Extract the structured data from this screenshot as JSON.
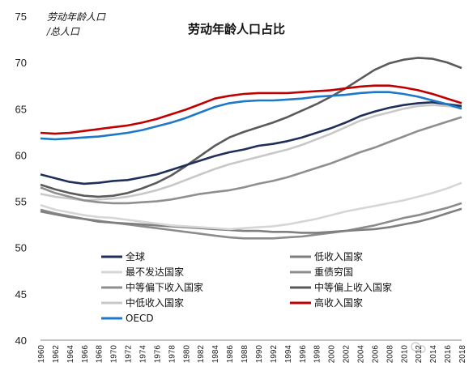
{
  "chart_data": {
    "type": "line",
    "title": "劳动年龄人口占比",
    "ylabel_line1": "劳动年龄人口",
    "ylabel_line2": "/总人口",
    "ylim": [
      40,
      75
    ],
    "yticks": [
      40,
      45,
      50,
      55,
      60,
      65,
      70,
      75
    ],
    "xticks": [
      "1960",
      "1962",
      "1964",
      "1966",
      "1968",
      "1970",
      "1972",
      "1974",
      "1976",
      "1978",
      "1980",
      "1982",
      "1984",
      "1986",
      "1988",
      "1990",
      "1992",
      "1994",
      "1996",
      "1998",
      "2000",
      "2002",
      "2004",
      "2006",
      "2008",
      "2010",
      "2012",
      "2014",
      "2016",
      "2018"
    ],
    "legend_placement": "bottom-center",
    "grid": false,
    "series": [
      {
        "name": "全球",
        "color": "#1f2f5a",
        "points": [
          [
            1960,
            57.9
          ],
          [
            1962,
            57.5
          ],
          [
            1964,
            57.1
          ],
          [
            1966,
            56.9
          ],
          [
            1968,
            57.0
          ],
          [
            1970,
            57.2
          ],
          [
            1972,
            57.3
          ],
          [
            1974,
            57.6
          ],
          [
            1976,
            57.9
          ],
          [
            1978,
            58.4
          ],
          [
            1980,
            58.9
          ],
          [
            1982,
            59.4
          ],
          [
            1984,
            59.9
          ],
          [
            1986,
            60.3
          ],
          [
            1988,
            60.6
          ],
          [
            1990,
            61.0
          ],
          [
            1992,
            61.2
          ],
          [
            1994,
            61.5
          ],
          [
            1996,
            61.9
          ],
          [
            1998,
            62.4
          ],
          [
            2000,
            62.9
          ],
          [
            2002,
            63.5
          ],
          [
            2004,
            64.2
          ],
          [
            2006,
            64.7
          ],
          [
            2008,
            65.1
          ],
          [
            2010,
            65.4
          ],
          [
            2012,
            65.6
          ],
          [
            2014,
            65.7
          ],
          [
            2016,
            65.5
          ],
          [
            2018,
            65.3
          ]
        ]
      },
      {
        "name": "低收入国家",
        "color": "#7f7f7f",
        "points": [
          [
            1960,
            53.9
          ],
          [
            1962,
            53.6
          ],
          [
            1964,
            53.3
          ],
          [
            1966,
            53.1
          ],
          [
            1968,
            52.8
          ],
          [
            1970,
            52.7
          ],
          [
            1972,
            52.6
          ],
          [
            1974,
            52.5
          ],
          [
            1976,
            52.4
          ],
          [
            1978,
            52.3
          ],
          [
            1980,
            52.2
          ],
          [
            1982,
            52.1
          ],
          [
            1984,
            52.0
          ],
          [
            1986,
            51.9
          ],
          [
            1988,
            51.8
          ],
          [
            1990,
            51.8
          ],
          [
            1992,
            51.7
          ],
          [
            1994,
            51.7
          ],
          [
            1996,
            51.6
          ],
          [
            1998,
            51.6
          ],
          [
            2000,
            51.7
          ],
          [
            2002,
            51.8
          ],
          [
            2004,
            51.9
          ],
          [
            2006,
            52.0
          ],
          [
            2008,
            52.2
          ],
          [
            2010,
            52.5
          ],
          [
            2012,
            52.8
          ],
          [
            2014,
            53.2
          ],
          [
            2016,
            53.7
          ],
          [
            2018,
            54.2
          ]
        ]
      },
      {
        "name": "最不发达国家",
        "color": "#d6d6d6",
        "points": [
          [
            1960,
            54.6
          ],
          [
            1962,
            54.1
          ],
          [
            1964,
            53.8
          ],
          [
            1966,
            53.5
          ],
          [
            1968,
            53.3
          ],
          [
            1970,
            53.2
          ],
          [
            1972,
            53.0
          ],
          [
            1974,
            52.8
          ],
          [
            1976,
            52.6
          ],
          [
            1978,
            52.4
          ],
          [
            1980,
            52.3
          ],
          [
            1982,
            52.2
          ],
          [
            1984,
            52.1
          ],
          [
            1986,
            52.0
          ],
          [
            1988,
            52.1
          ],
          [
            1990,
            52.2
          ],
          [
            1992,
            52.3
          ],
          [
            1994,
            52.5
          ],
          [
            1996,
            52.8
          ],
          [
            1998,
            53.1
          ],
          [
            2000,
            53.5
          ],
          [
            2002,
            53.9
          ],
          [
            2004,
            54.2
          ],
          [
            2006,
            54.5
          ],
          [
            2008,
            54.8
          ],
          [
            2010,
            55.1
          ],
          [
            2012,
            55.5
          ],
          [
            2014,
            55.9
          ],
          [
            2016,
            56.4
          ],
          [
            2018,
            57.0
          ]
        ]
      },
      {
        "name": "重债穷国",
        "color": "#8c8c8c",
        "points": [
          [
            1960,
            54.1
          ],
          [
            1962,
            53.7
          ],
          [
            1964,
            53.4
          ],
          [
            1966,
            53.1
          ],
          [
            1968,
            52.9
          ],
          [
            1970,
            52.7
          ],
          [
            1972,
            52.5
          ],
          [
            1974,
            52.3
          ],
          [
            1976,
            52.1
          ],
          [
            1978,
            51.9
          ],
          [
            1980,
            51.7
          ],
          [
            1982,
            51.5
          ],
          [
            1984,
            51.3
          ],
          [
            1986,
            51.1
          ],
          [
            1988,
            51.0
          ],
          [
            1990,
            51.0
          ],
          [
            1992,
            51.0
          ],
          [
            1994,
            51.1
          ],
          [
            1996,
            51.2
          ],
          [
            1998,
            51.4
          ],
          [
            2000,
            51.6
          ],
          [
            2002,
            51.8
          ],
          [
            2004,
            52.1
          ],
          [
            2006,
            52.4
          ],
          [
            2008,
            52.8
          ],
          [
            2010,
            53.2
          ],
          [
            2012,
            53.5
          ],
          [
            2014,
            53.9
          ],
          [
            2016,
            54.3
          ],
          [
            2018,
            54.8
          ]
        ]
      },
      {
        "name": "中等偏下收入国家",
        "color": "#8f8f8f",
        "points": [
          [
            1960,
            56.5
          ],
          [
            1962,
            55.9
          ],
          [
            1964,
            55.5
          ],
          [
            1966,
            55.1
          ],
          [
            1968,
            54.9
          ],
          [
            1970,
            54.8
          ],
          [
            1972,
            54.8
          ],
          [
            1974,
            54.9
          ],
          [
            1976,
            55.0
          ],
          [
            1978,
            55.2
          ],
          [
            1980,
            55.5
          ],
          [
            1982,
            55.8
          ],
          [
            1984,
            56.0
          ],
          [
            1986,
            56.2
          ],
          [
            1988,
            56.5
          ],
          [
            1990,
            56.9
          ],
          [
            1992,
            57.2
          ],
          [
            1994,
            57.6
          ],
          [
            1996,
            58.1
          ],
          [
            1998,
            58.6
          ],
          [
            2000,
            59.1
          ],
          [
            2002,
            59.7
          ],
          [
            2004,
            60.3
          ],
          [
            2006,
            60.8
          ],
          [
            2008,
            61.4
          ],
          [
            2010,
            62.0
          ],
          [
            2012,
            62.6
          ],
          [
            2014,
            63.1
          ],
          [
            2016,
            63.6
          ],
          [
            2018,
            64.1
          ]
        ]
      },
      {
        "name": "中等偏上收入国家",
        "color": "#5a5a5a",
        "points": [
          [
            1960,
            56.8
          ],
          [
            1962,
            56.3
          ],
          [
            1964,
            55.9
          ],
          [
            1966,
            55.6
          ],
          [
            1968,
            55.5
          ],
          [
            1970,
            55.6
          ],
          [
            1972,
            55.9
          ],
          [
            1974,
            56.4
          ],
          [
            1976,
            57.0
          ],
          [
            1978,
            57.8
          ],
          [
            1980,
            58.8
          ],
          [
            1982,
            59.9
          ],
          [
            1984,
            61.0
          ],
          [
            1986,
            61.9
          ],
          [
            1988,
            62.5
          ],
          [
            1990,
            63.0
          ],
          [
            1992,
            63.5
          ],
          [
            1994,
            64.1
          ],
          [
            1996,
            64.8
          ],
          [
            1998,
            65.5
          ],
          [
            2000,
            66.3
          ],
          [
            2002,
            67.2
          ],
          [
            2004,
            68.2
          ],
          [
            2006,
            69.2
          ],
          [
            2008,
            69.9
          ],
          [
            2010,
            70.3
          ],
          [
            2012,
            70.5
          ],
          [
            2014,
            70.4
          ],
          [
            2016,
            70.0
          ],
          [
            2018,
            69.4
          ]
        ]
      },
      {
        "name": "中低收入国家",
        "color": "#c8c8c8",
        "points": [
          [
            1960,
            55.8
          ],
          [
            1962,
            55.5
          ],
          [
            1964,
            55.3
          ],
          [
            1966,
            55.1
          ],
          [
            1968,
            55.2
          ],
          [
            1970,
            55.3
          ],
          [
            1972,
            55.5
          ],
          [
            1974,
            55.8
          ],
          [
            1976,
            56.2
          ],
          [
            1978,
            56.7
          ],
          [
            1980,
            57.3
          ],
          [
            1982,
            57.9
          ],
          [
            1984,
            58.5
          ],
          [
            1986,
            59.0
          ],
          [
            1988,
            59.4
          ],
          [
            1990,
            59.8
          ],
          [
            1992,
            60.2
          ],
          [
            1994,
            60.6
          ],
          [
            1996,
            61.1
          ],
          [
            1998,
            61.7
          ],
          [
            2000,
            62.3
          ],
          [
            2002,
            63.0
          ],
          [
            2004,
            63.7
          ],
          [
            2006,
            64.2
          ],
          [
            2008,
            64.6
          ],
          [
            2010,
            65.0
          ],
          [
            2012,
            65.3
          ],
          [
            2014,
            65.4
          ],
          [
            2016,
            65.3
          ],
          [
            2018,
            65.1
          ]
        ]
      },
      {
        "name": "高收入国家",
        "color": "#c00000",
        "points": [
          [
            1960,
            62.4
          ],
          [
            1962,
            62.3
          ],
          [
            1964,
            62.4
          ],
          [
            1966,
            62.6
          ],
          [
            1968,
            62.8
          ],
          [
            1970,
            63.0
          ],
          [
            1972,
            63.2
          ],
          [
            1974,
            63.5
          ],
          [
            1976,
            63.9
          ],
          [
            1978,
            64.4
          ],
          [
            1980,
            64.9
          ],
          [
            1982,
            65.5
          ],
          [
            1984,
            66.1
          ],
          [
            1986,
            66.4
          ],
          [
            1988,
            66.6
          ],
          [
            1990,
            66.7
          ],
          [
            1992,
            66.7
          ],
          [
            1994,
            66.7
          ],
          [
            1996,
            66.8
          ],
          [
            1998,
            66.9
          ],
          [
            2000,
            67.0
          ],
          [
            2002,
            67.2
          ],
          [
            2004,
            67.4
          ],
          [
            2006,
            67.5
          ],
          [
            2008,
            67.5
          ],
          [
            2010,
            67.3
          ],
          [
            2012,
            67.0
          ],
          [
            2014,
            66.6
          ],
          [
            2016,
            66.1
          ],
          [
            2018,
            65.6
          ]
        ]
      },
      {
        "name": "OECD",
        "color": "#1e78c8",
        "points": [
          [
            1960,
            61.8
          ],
          [
            1962,
            61.7
          ],
          [
            1964,
            61.8
          ],
          [
            1966,
            61.9
          ],
          [
            1968,
            62.0
          ],
          [
            1970,
            62.2
          ],
          [
            1972,
            62.4
          ],
          [
            1974,
            62.7
          ],
          [
            1976,
            63.1
          ],
          [
            1978,
            63.5
          ],
          [
            1980,
            64.0
          ],
          [
            1982,
            64.6
          ],
          [
            1984,
            65.2
          ],
          [
            1986,
            65.6
          ],
          [
            1988,
            65.8
          ],
          [
            1990,
            65.9
          ],
          [
            1992,
            65.9
          ],
          [
            1994,
            66.0
          ],
          [
            1996,
            66.1
          ],
          [
            1998,
            66.3
          ],
          [
            2000,
            66.4
          ],
          [
            2002,
            66.5
          ],
          [
            2004,
            66.7
          ],
          [
            2006,
            66.8
          ],
          [
            2008,
            66.8
          ],
          [
            2010,
            66.6
          ],
          [
            2012,
            66.3
          ],
          [
            2014,
            65.9
          ],
          [
            2016,
            65.5
          ],
          [
            2018,
            65.0
          ]
        ]
      }
    ]
  }
}
